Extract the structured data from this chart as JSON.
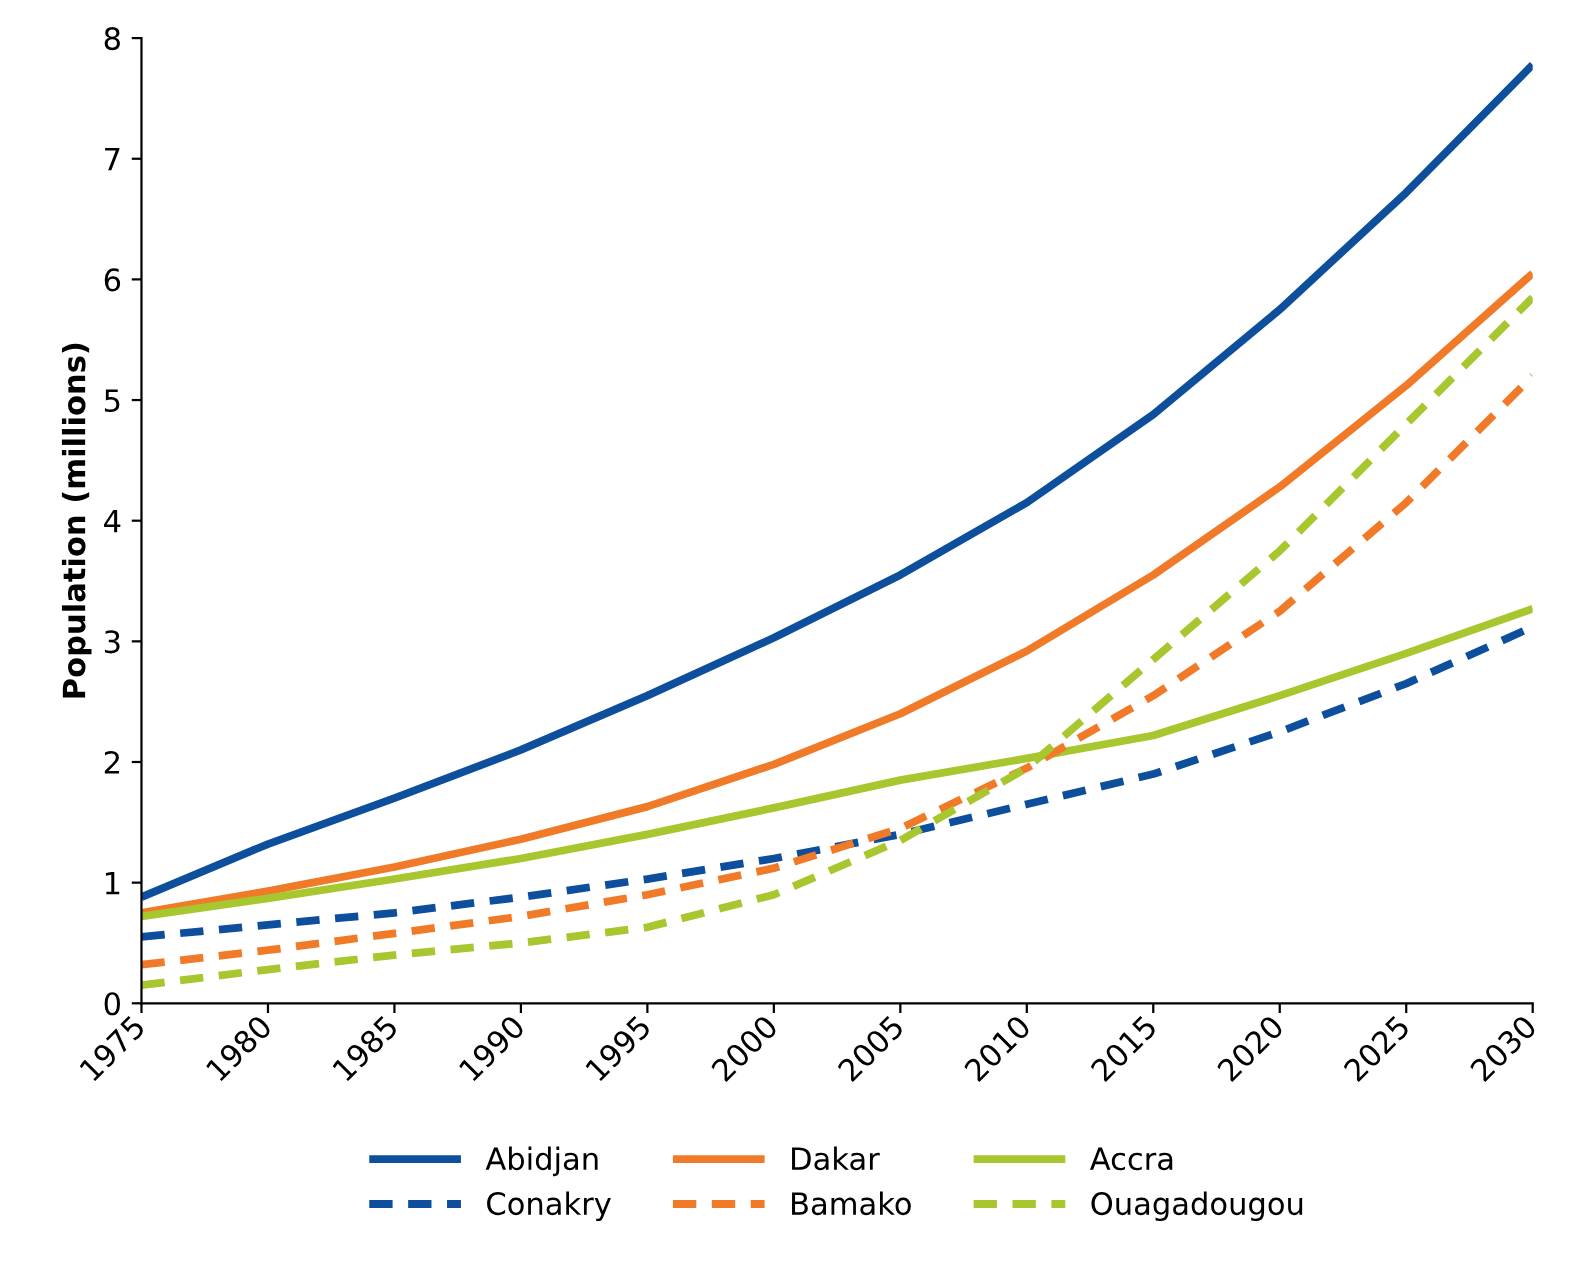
{
  "chart_data": {
    "type": "line",
    "ylabel": "Population (millions)",
    "x": [
      1975,
      1980,
      1985,
      1990,
      1995,
      2000,
      2005,
      2010,
      2015,
      2020,
      2025,
      2030
    ],
    "xlim": [
      1975,
      2030
    ],
    "xticks": [
      1975,
      1980,
      1985,
      1990,
      1995,
      2000,
      2005,
      2010,
      2015,
      2020,
      2025,
      2030
    ],
    "ylim": [
      0,
      8
    ],
    "yticks": [
      0,
      1,
      2,
      3,
      4,
      5,
      6,
      7,
      8
    ],
    "grid": false,
    "legend": "bottom",
    "series": [
      {
        "name": "Abidjan",
        "color": "#0d4f9c",
        "line_style": "solid",
        "values": [
          0.88,
          1.32,
          1.7,
          2.1,
          2.55,
          3.03,
          3.55,
          4.15,
          4.88,
          5.75,
          6.72,
          7.78
        ]
      },
      {
        "name": "Dakar",
        "color": "#f07a28",
        "line_style": "solid",
        "values": [
          0.75,
          0.93,
          1.13,
          1.36,
          1.63,
          1.98,
          2.4,
          2.92,
          3.55,
          4.28,
          5.12,
          6.05
        ]
      },
      {
        "name": "Accra",
        "color": "#a8c62e",
        "line_style": "solid",
        "values": [
          0.72,
          0.87,
          1.03,
          1.2,
          1.4,
          1.62,
          1.85,
          2.03,
          2.22,
          2.55,
          2.9,
          3.27
        ]
      },
      {
        "name": "Conakry",
        "color": "#0d4f9c",
        "line_style": "dashed",
        "values": [
          0.55,
          0.65,
          0.75,
          0.88,
          1.03,
          1.2,
          1.4,
          1.65,
          1.9,
          2.25,
          2.65,
          3.12
        ]
      },
      {
        "name": "Bamako",
        "color": "#f07a28",
        "line_style": "dashed",
        "values": [
          0.32,
          0.44,
          0.58,
          0.72,
          0.9,
          1.12,
          1.45,
          1.95,
          2.55,
          3.25,
          4.15,
          5.2
        ]
      },
      {
        "name": "Ouagadougou",
        "color": "#a8c62e",
        "line_style": "dashed",
        "values": [
          0.15,
          0.28,
          0.4,
          0.5,
          0.63,
          0.9,
          1.35,
          1.95,
          2.85,
          3.75,
          4.8,
          5.85
        ]
      }
    ]
  }
}
